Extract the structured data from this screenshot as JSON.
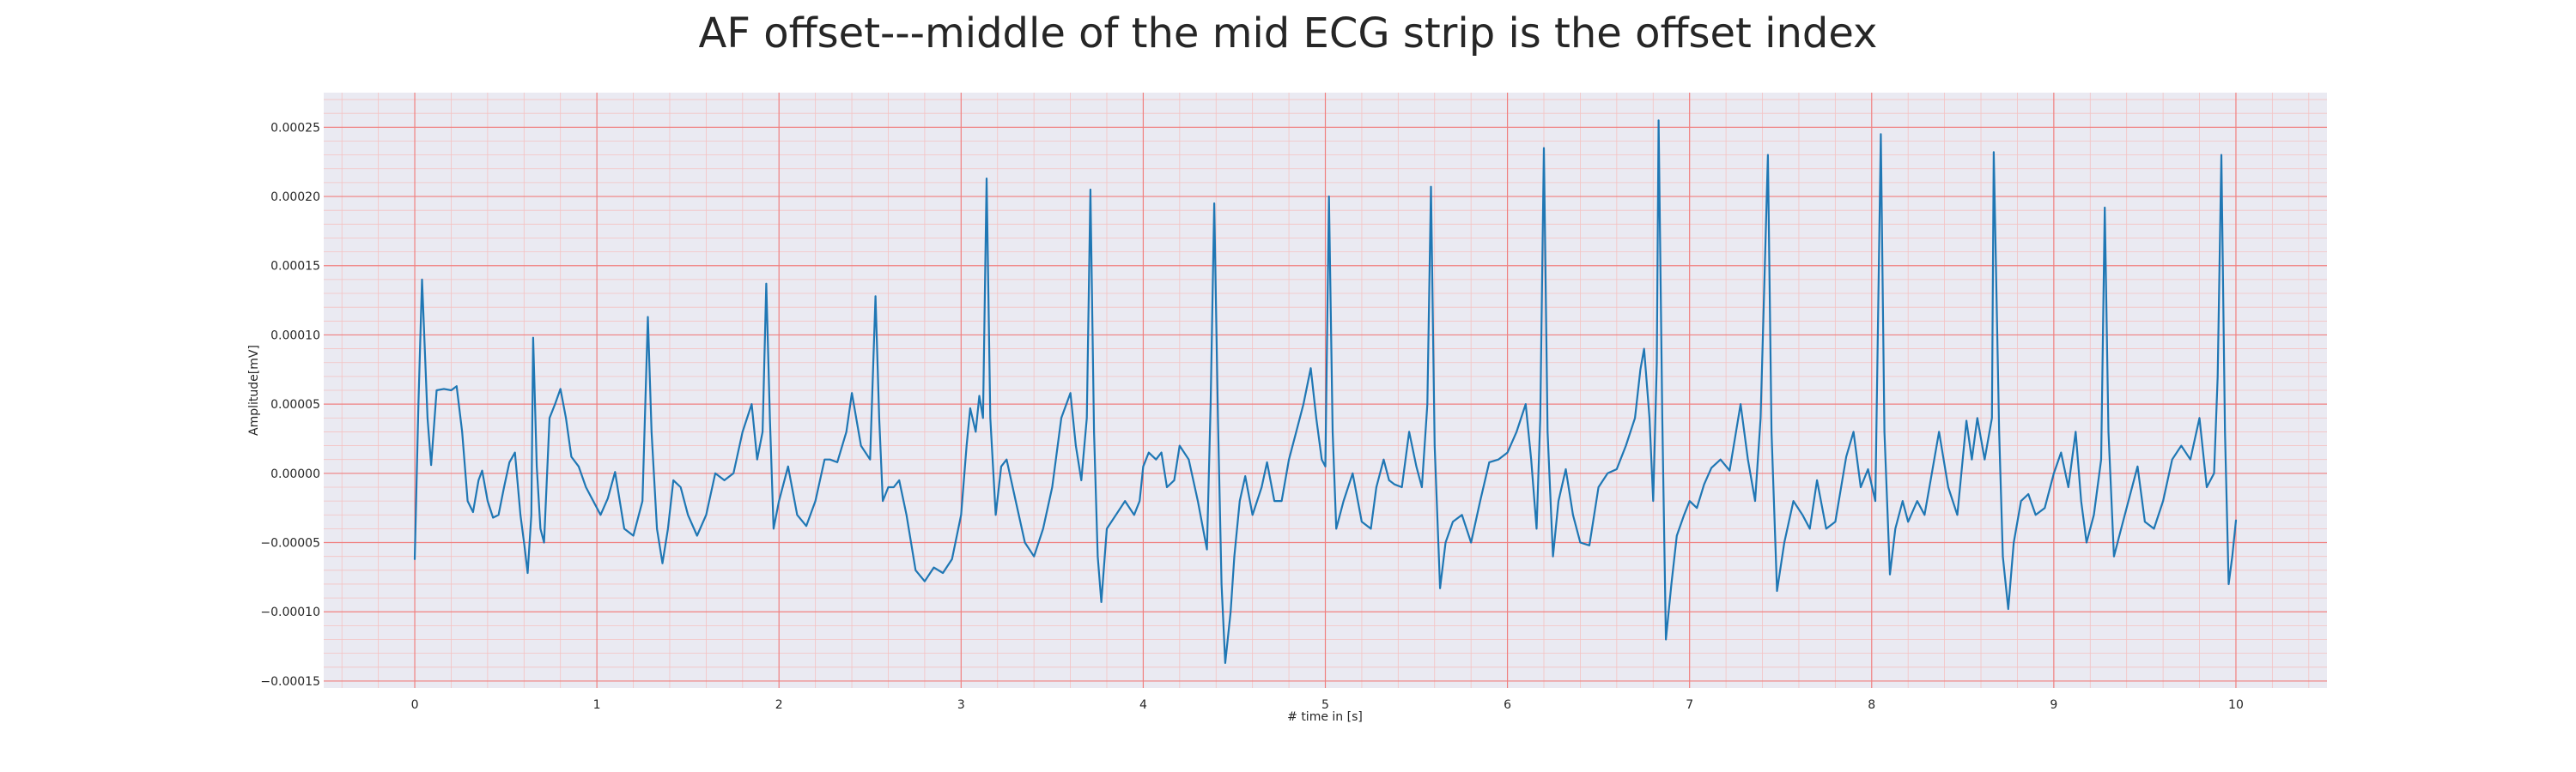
{
  "chart_data": {
    "type": "line",
    "title": "AF offset---middle of the mid ECG strip is the offset index",
    "xlabel": "# time in [s]",
    "ylabel": "Amplitude[mV]",
    "xlim": [
      -0.5,
      10.5
    ],
    "ylim": [
      -0.000155,
      0.000275
    ],
    "x_ticks": [
      0,
      1,
      2,
      3,
      4,
      5,
      6,
      7,
      8,
      9,
      10
    ],
    "x_tick_labels": [
      "0",
      "1",
      "2",
      "3",
      "4",
      "5",
      "6",
      "7",
      "8",
      "9",
      "10"
    ],
    "y_ticks": [
      -0.00015,
      -0.0001,
      -5e-05,
      0,
      5e-05,
      0.0001,
      0.00015,
      0.0002,
      0.00025
    ],
    "y_tick_labels": [
      "−0.00015",
      "−0.00010",
      "−0.00005",
      "0.00000",
      "0.00005",
      "0.00010",
      "0.00015",
      "0.00020",
      "0.00025"
    ],
    "grid": "major red lines at ticks, minor pink lines",
    "colors": {
      "background": "#eaeaf2",
      "major_grid": "#f08080",
      "minor_grid": "#f4c2c2",
      "line": "#1f77b4"
    },
    "series": [
      {
        "points": [
          [
            0.0,
            -6.2e-05
          ],
          [
            0.02,
            5e-05
          ],
          [
            0.04,
            0.00014
          ],
          [
            0.07,
            4e-05
          ],
          [
            0.09,
            6e-06
          ],
          [
            0.12,
            6e-05
          ],
          [
            0.16,
            6.1e-05
          ],
          [
            0.2,
            6e-05
          ],
          [
            0.23,
            6.3e-05
          ],
          [
            0.26,
            3e-05
          ],
          [
            0.29,
            -2e-05
          ],
          [
            0.32,
            -2.8e-05
          ],
          [
            0.35,
            -5e-06
          ],
          [
            0.37,
            2e-06
          ],
          [
            0.4,
            -2e-05
          ],
          [
            0.43,
            -3.2e-05
          ],
          [
            0.46,
            -3e-05
          ],
          [
            0.49,
            -1e-05
          ],
          [
            0.52,
            8e-06
          ],
          [
            0.55,
            1.5e-05
          ],
          [
            0.58,
            -3e-05
          ],
          [
            0.6,
            -5e-05
          ],
          [
            0.62,
            -7.2e-05
          ],
          [
            0.64,
            -3e-05
          ],
          [
            0.65,
            9.8e-05
          ],
          [
            0.67,
            5e-06
          ],
          [
            0.69,
            -4e-05
          ],
          [
            0.71,
            -5e-05
          ],
          [
            0.74,
            4e-05
          ],
          [
            0.77,
            5e-05
          ],
          [
            0.8,
            6.1e-05
          ],
          [
            0.83,
            4e-05
          ],
          [
            0.86,
            1.2e-05
          ],
          [
            0.9,
            5e-06
          ],
          [
            0.94,
            -1e-05
          ],
          [
            0.98,
            -2e-05
          ],
          [
            1.02,
            -3e-05
          ],
          [
            1.06,
            -1.8e-05
          ],
          [
            1.1,
            1e-06
          ],
          [
            1.15,
            -4e-05
          ],
          [
            1.2,
            -4.5e-05
          ],
          [
            1.25,
            -2e-05
          ],
          [
            1.28,
            0.000113
          ],
          [
            1.3,
            3e-05
          ],
          [
            1.33,
            -4e-05
          ],
          [
            1.36,
            -6.5e-05
          ],
          [
            1.39,
            -4e-05
          ],
          [
            1.42,
            -5e-06
          ],
          [
            1.46,
            -1e-05
          ],
          [
            1.5,
            -3e-05
          ],
          [
            1.55,
            -4.5e-05
          ],
          [
            1.6,
            -3e-05
          ],
          [
            1.65,
            0.0
          ],
          [
            1.7,
            -5e-06
          ],
          [
            1.75,
            0.0
          ],
          [
            1.8,
            3e-05
          ],
          [
            1.85,
            5e-05
          ],
          [
            1.88,
            1e-05
          ],
          [
            1.91,
            3e-05
          ],
          [
            1.93,
            0.000137
          ],
          [
            1.95,
            4e-05
          ],
          [
            1.97,
            -4e-05
          ],
          [
            2.0,
            -2e-05
          ],
          [
            2.05,
            5e-06
          ],
          [
            2.1,
            -3e-05
          ],
          [
            2.15,
            -3.8e-05
          ],
          [
            2.2,
            -2e-05
          ],
          [
            2.25,
            1e-05
          ],
          [
            2.28,
            1e-05
          ],
          [
            2.32,
            8e-06
          ],
          [
            2.37,
            3e-05
          ],
          [
            2.4,
            5.8e-05
          ],
          [
            2.45,
            2e-05
          ],
          [
            2.5,
            1e-05
          ],
          [
            2.53,
            0.000128
          ],
          [
            2.55,
            4e-05
          ],
          [
            2.57,
            -2e-05
          ],
          [
            2.6,
            -1e-05
          ],
          [
            2.63,
            -1e-05
          ],
          [
            2.66,
            -5e-06
          ],
          [
            2.7,
            -3e-05
          ],
          [
            2.75,
            -7e-05
          ],
          [
            2.8,
            -7.8e-05
          ],
          [
            2.85,
            -6.8e-05
          ],
          [
            2.9,
            -7.2e-05
          ],
          [
            2.95,
            -6.2e-05
          ],
          [
            3.0,
            -3e-05
          ],
          [
            3.03,
            2e-05
          ],
          [
            3.05,
            4.7e-05
          ],
          [
            3.08,
            3e-05
          ],
          [
            3.1,
            5.6e-05
          ],
          [
            3.12,
            4e-05
          ],
          [
            3.14,
            0.000213
          ],
          [
            3.16,
            4e-05
          ],
          [
            3.19,
            -3e-05
          ],
          [
            3.22,
            5e-06
          ],
          [
            3.25,
            1e-05
          ],
          [
            3.3,
            -2e-05
          ],
          [
            3.35,
            -5e-05
          ],
          [
            3.4,
            -6e-05
          ],
          [
            3.45,
            -4e-05
          ],
          [
            3.5,
            -1e-05
          ],
          [
            3.55,
            4e-05
          ],
          [
            3.6,
            5.8e-05
          ],
          [
            3.63,
            2e-05
          ],
          [
            3.66,
            -5e-06
          ],
          [
            3.69,
            4e-05
          ],
          [
            3.71,
            0.000205
          ],
          [
            3.73,
            3e-05
          ],
          [
            3.75,
            -6e-05
          ],
          [
            3.77,
            -9.3e-05
          ],
          [
            3.8,
            -4e-05
          ],
          [
            3.85,
            -3e-05
          ],
          [
            3.9,
            -2e-05
          ],
          [
            3.95,
            -3e-05
          ],
          [
            3.98,
            -2e-05
          ],
          [
            4.0,
            5e-06
          ],
          [
            4.03,
            1.5e-05
          ],
          [
            4.07,
            1e-05
          ],
          [
            4.1,
            1.5e-05
          ],
          [
            4.13,
            -1e-05
          ],
          [
            4.17,
            -5e-06
          ],
          [
            4.2,
            2e-05
          ],
          [
            4.25,
            1e-05
          ],
          [
            4.3,
            -2e-05
          ],
          [
            4.35,
            -5.5e-05
          ],
          [
            4.37,
            5e-05
          ],
          [
            4.39,
            0.000195
          ],
          [
            4.41,
            4e-05
          ],
          [
            4.43,
            -8e-05
          ],
          [
            4.45,
            -0.000137
          ],
          [
            4.48,
            -0.0001
          ],
          [
            4.5,
            -6e-05
          ],
          [
            4.53,
            -2e-05
          ],
          [
            4.56,
            -2e-06
          ],
          [
            4.6,
            -3e-05
          ],
          [
            4.65,
            -1e-05
          ],
          [
            4.68,
            8e-06
          ],
          [
            4.72,
            -2e-05
          ],
          [
            4.76,
            -2e-05
          ],
          [
            4.8,
            1e-05
          ],
          [
            4.84,
            3e-05
          ],
          [
            4.88,
            5e-05
          ],
          [
            4.92,
            7.6e-05
          ],
          [
            4.95,
            4e-05
          ],
          [
            4.98,
            1e-05
          ],
          [
            5.0,
            5e-06
          ],
          [
            5.02,
            0.0002
          ],
          [
            5.04,
            3e-05
          ],
          [
            5.06,
            -4e-05
          ],
          [
            5.1,
            -2e-05
          ],
          [
            5.15,
            0.0
          ],
          [
            5.2,
            -3.5e-05
          ],
          [
            5.25,
            -4e-05
          ],
          [
            5.28,
            -1e-05
          ],
          [
            5.32,
            1e-05
          ],
          [
            5.35,
            -5e-06
          ],
          [
            5.38,
            -8e-06
          ],
          [
            5.42,
            -1e-05
          ],
          [
            5.46,
            3e-05
          ],
          [
            5.5,
            5e-06
          ],
          [
            5.53,
            -1e-05
          ],
          [
            5.56,
            5e-05
          ],
          [
            5.58,
            0.000207
          ],
          [
            5.6,
            2e-05
          ],
          [
            5.63,
            -8.3e-05
          ],
          [
            5.66,
            -5e-05
          ],
          [
            5.7,
            -3.5e-05
          ],
          [
            5.75,
            -3e-05
          ],
          [
            5.8,
            -5e-05
          ],
          [
            5.85,
            -2e-05
          ],
          [
            5.9,
            8e-06
          ],
          [
            5.95,
            1e-05
          ],
          [
            6.0,
            1.5e-05
          ],
          [
            6.05,
            3e-05
          ],
          [
            6.1,
            5e-05
          ],
          [
            6.13,
            1e-05
          ],
          [
            6.16,
            -4e-05
          ],
          [
            6.18,
            4e-05
          ],
          [
            6.2,
            0.000235
          ],
          [
            6.22,
            3e-05
          ],
          [
            6.25,
            -6e-05
          ],
          [
            6.28,
            -2e-05
          ],
          [
            6.32,
            3e-06
          ],
          [
            6.36,
            -3e-05
          ],
          [
            6.4,
            -5e-05
          ],
          [
            6.45,
            -5.2e-05
          ],
          [
            6.5,
            -1e-05
          ],
          [
            6.55,
            0.0
          ],
          [
            6.6,
            3e-06
          ],
          [
            6.65,
            2e-05
          ],
          [
            6.7,
            4e-05
          ],
          [
            6.73,
            7.5e-05
          ],
          [
            6.75,
            9e-05
          ],
          [
            6.78,
            4e-05
          ],
          [
            6.8,
            -2e-05
          ],
          [
            6.82,
            8e-05
          ],
          [
            6.83,
            0.000255
          ],
          [
            6.85,
            4e-05
          ],
          [
            6.87,
            -0.00012
          ],
          [
            6.9,
            -8e-05
          ],
          [
            6.93,
            -4.5e-05
          ],
          [
            6.97,
            -3e-05
          ],
          [
            7.0,
            -2e-05
          ],
          [
            7.04,
            -2.5e-05
          ],
          [
            7.08,
            -8e-06
          ],
          [
            7.12,
            4e-06
          ],
          [
            7.17,
            1e-05
          ],
          [
            7.22,
            2e-06
          ],
          [
            7.28,
            5e-05
          ],
          [
            7.32,
            1e-05
          ],
          [
            7.36,
            -2e-05
          ],
          [
            7.39,
            4e-05
          ],
          [
            7.43,
            0.00023
          ],
          [
            7.45,
            3e-05
          ],
          [
            7.48,
            -8.5e-05
          ],
          [
            7.52,
            -5e-05
          ],
          [
            7.57,
            -2e-05
          ],
          [
            7.62,
            -3e-05
          ],
          [
            7.66,
            -4e-05
          ],
          [
            7.7,
            -5e-06
          ],
          [
            7.75,
            -4e-05
          ],
          [
            7.8,
            -3.5e-05
          ],
          [
            7.86,
            1.2e-05
          ],
          [
            7.9,
            3e-05
          ],
          [
            7.94,
            -1e-05
          ],
          [
            7.98,
            3e-06
          ],
          [
            8.02,
            -2e-05
          ],
          [
            8.05,
            0.000245
          ],
          [
            8.07,
            3e-05
          ],
          [
            8.1,
            -7.3e-05
          ],
          [
            8.13,
            -4e-05
          ],
          [
            8.17,
            -2e-05
          ],
          [
            8.2,
            -3.5e-05
          ],
          [
            8.25,
            -2e-05
          ],
          [
            8.29,
            -3e-05
          ],
          [
            8.33,
            0.0
          ],
          [
            8.37,
            3e-05
          ],
          [
            8.42,
            -1e-05
          ],
          [
            8.47,
            -3e-05
          ],
          [
            8.52,
            3.8e-05
          ],
          [
            8.55,
            1e-05
          ],
          [
            8.58,
            4e-05
          ],
          [
            8.62,
            1e-05
          ],
          [
            8.66,
            4e-05
          ],
          [
            8.67,
            0.000232
          ],
          [
            8.7,
            3e-05
          ],
          [
            8.72,
            -6e-05
          ],
          [
            8.75,
            -9.8e-05
          ],
          [
            8.78,
            -5e-05
          ],
          [
            8.82,
            -2e-05
          ],
          [
            8.86,
            -1.5e-05
          ],
          [
            8.9,
            -3e-05
          ],
          [
            8.95,
            -2.5e-05
          ],
          [
            9.0,
            0.0
          ],
          [
            9.04,
            1.5e-05
          ],
          [
            9.08,
            -1e-05
          ],
          [
            9.12,
            3e-05
          ],
          [
            9.15,
            -2e-05
          ],
          [
            9.18,
            -5e-05
          ],
          [
            9.22,
            -3e-05
          ],
          [
            9.26,
            1e-05
          ],
          [
            9.28,
            0.000192
          ],
          [
            9.3,
            3e-05
          ],
          [
            9.33,
            -6e-05
          ],
          [
            9.37,
            -4e-05
          ],
          [
            9.42,
            -1.5e-05
          ],
          [
            9.46,
            5e-06
          ],
          [
            9.5,
            -3.5e-05
          ],
          [
            9.55,
            -4e-05
          ],
          [
            9.6,
            -2e-05
          ],
          [
            9.65,
            1e-05
          ],
          [
            9.7,
            2e-05
          ],
          [
            9.75,
            1e-05
          ],
          [
            9.8,
            4e-05
          ],
          [
            9.84,
            -1e-05
          ],
          [
            9.88,
            0.0
          ],
          [
            9.9,
            7e-05
          ],
          [
            9.92,
            0.00023
          ],
          [
            9.94,
            3e-05
          ],
          [
            9.96,
            -8e-05
          ],
          [
            9.98,
            -6e-05
          ],
          [
            10.0,
            -3.4e-05
          ]
        ]
      }
    ]
  }
}
